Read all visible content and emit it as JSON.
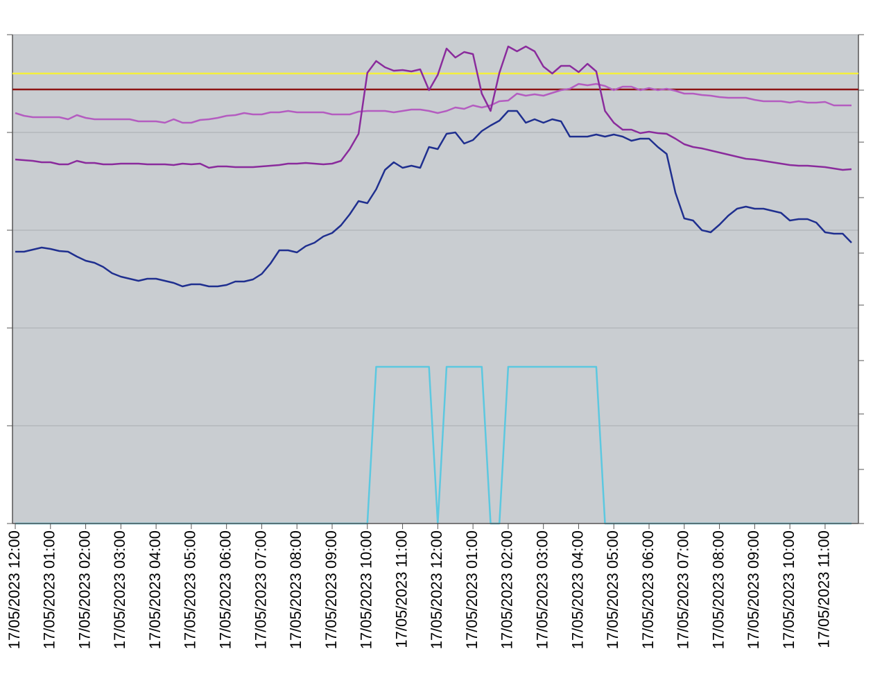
{
  "chart_data": {
    "type": "line",
    "categories": [
      "17/05/2023 12:00",
      null,
      null,
      null,
      "17/05/2023 01:00",
      null,
      null,
      null,
      "17/05/2023 02:00",
      null,
      null,
      null,
      "17/05/2023 03:00",
      null,
      null,
      null,
      "17/05/2023 04:00",
      null,
      null,
      null,
      "17/05/2023 05:00",
      null,
      null,
      null,
      "17/05/2023 06:00",
      null,
      null,
      null,
      "17/05/2023 07:00",
      null,
      null,
      null,
      "17/05/2023 08:00",
      null,
      null,
      null,
      "17/05/2023 09:00",
      null,
      null,
      null,
      "17/05/2023 10:00",
      null,
      null,
      null,
      "17/05/2023 11:00",
      null,
      null,
      null,
      "17/05/2023 12:00",
      null,
      null,
      null,
      "17/05/2023 01:00",
      null,
      null,
      null,
      "17/05/2023 02:00",
      null,
      null,
      null,
      "17/05/2023 03:00",
      null,
      null,
      null,
      "17/05/2023 04:00",
      null,
      null,
      null,
      "17/05/2023 05:00",
      null,
      null,
      null,
      "17/05/2023 06:00",
      null,
      null,
      null,
      "17/05/2023 07:00",
      null,
      null,
      null,
      "17/05/2023 08:00",
      null,
      null,
      null,
      "17/05/2023 09:00",
      null,
      null,
      null,
      "17/05/2023 10:00",
      null,
      null,
      null,
      "17/05/2023 11:00",
      null,
      null,
      null
    ],
    "ylim": [
      0,
      705
    ],
    "yticks": [
      0,
      141,
      282,
      423,
      564,
      705
    ],
    "grid": true,
    "hlines": [
      {
        "value": 649,
        "color": "#f4ef3c"
      },
      {
        "value": 626,
        "color": "#8c1414"
      }
    ],
    "series": [
      {
        "color": "#b45cc0",
        "values": [
          592,
          588,
          586,
          586,
          586,
          586,
          583,
          589,
          585,
          583,
          583,
          583,
          583,
          583,
          580,
          580,
          580,
          578,
          583,
          578,
          578,
          582,
          583,
          585,
          588,
          589,
          592,
          590,
          590,
          593,
          593,
          595,
          593,
          593,
          593,
          593,
          590,
          590,
          590,
          594,
          595,
          595,
          595,
          593,
          595,
          597,
          597,
          595,
          592,
          595,
          600,
          598,
          603,
          600,
          603,
          609,
          610,
          620,
          617,
          619,
          617,
          621,
          625,
          627,
          634,
          632,
          634,
          631,
          625,
          630,
          630,
          625,
          628,
          625,
          627,
          624,
          620,
          620,
          618,
          617,
          615,
          614,
          614,
          614,
          611,
          609,
          609,
          609,
          607,
          609,
          607,
          607,
          608,
          603,
          603,
          603
        ]
      },
      {
        "color": "#8a2b9c",
        "values": [
          525,
          524,
          523,
          521,
          521,
          518,
          518,
          523,
          520,
          520,
          518,
          518,
          519,
          519,
          519,
          518,
          518,
          518,
          517,
          519,
          518,
          519,
          513,
          515,
          515,
          514,
          514,
          514,
          515,
          516,
          517,
          519,
          519,
          520,
          519,
          518,
          519,
          523,
          540,
          562,
          650,
          667,
          658,
          653,
          654,
          652,
          655,
          625,
          647,
          685,
          672,
          680,
          677,
          620,
          595,
          650,
          688,
          681,
          688,
          681,
          659,
          649,
          660,
          660,
          651,
          663,
          652,
          595,
          578,
          568,
          568,
          563,
          565,
          563,
          562,
          555,
          547,
          543,
          541,
          538,
          535,
          532,
          529,
          526,
          525,
          523,
          521,
          519,
          517,
          516,
          516,
          515,
          514,
          512,
          510,
          511
        ]
      },
      {
        "color": "#1f2f8f",
        "values": [
          392,
          392,
          395,
          398,
          396,
          393,
          392,
          385,
          379,
          376,
          370,
          361,
          356,
          353,
          350,
          353,
          353,
          350,
          347,
          342,
          345,
          345,
          342,
          342,
          344,
          349,
          349,
          352,
          360,
          375,
          394,
          394,
          391,
          400,
          405,
          414,
          419,
          430,
          446,
          465,
          462,
          482,
          510,
          521,
          513,
          516,
          513,
          543,
          540,
          562,
          564,
          548,
          553,
          566,
          574,
          581,
          595,
          595,
          578,
          583,
          578,
          583,
          580,
          558,
          558,
          558,
          561,
          558,
          561,
          558,
          552,
          555,
          555,
          543,
          533,
          477,
          440,
          437,
          423,
          420,
          431,
          444,
          454,
          457,
          454,
          454,
          451,
          448,
          437,
          439,
          439,
          434,
          420,
          418,
          418,
          405
        ]
      },
      {
        "color": "#5cc8e0",
        "values": [
          0,
          0,
          0,
          0,
          0,
          0,
          0,
          0,
          0,
          0,
          0,
          0,
          0,
          0,
          0,
          0,
          0,
          0,
          0,
          0,
          0,
          0,
          0,
          0,
          0,
          0,
          0,
          0,
          0,
          0,
          0,
          0,
          0,
          0,
          0,
          0,
          0,
          0,
          0,
          0,
          0,
          226,
          226,
          226,
          226,
          226,
          226,
          226,
          0,
          226,
          226,
          226,
          226,
          226,
          0,
          0,
          226,
          226,
          226,
          226,
          226,
          226,
          226,
          226,
          226,
          226,
          226,
          0,
          0,
          0,
          0,
          0,
          0,
          0,
          0,
          0,
          0,
          0,
          0,
          0,
          0,
          0,
          0,
          0,
          0,
          0,
          0,
          0,
          0,
          0,
          0,
          0,
          0,
          0,
          0,
          0
        ]
      }
    ]
  }
}
